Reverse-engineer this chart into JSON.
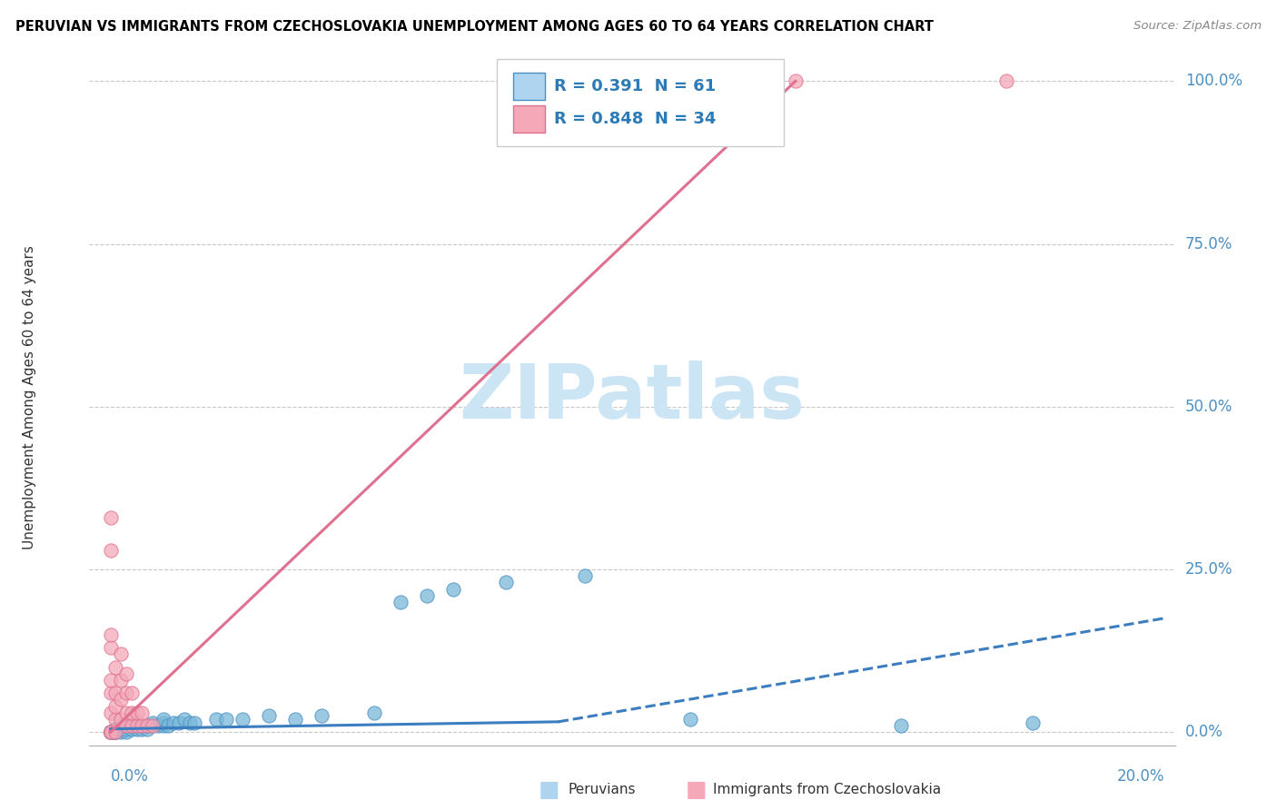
{
  "title": "PERUVIAN VS IMMIGRANTS FROM CZECHOSLOVAKIA UNEMPLOYMENT AMONG AGES 60 TO 64 YEARS CORRELATION CHART",
  "source": "Source: ZipAtlas.com",
  "ylabel": "Unemployment Among Ages 60 to 64 years",
  "ytick_labels": [
    "0.0%",
    "25.0%",
    "50.0%",
    "75.0%",
    "100.0%"
  ],
  "ytick_values": [
    0.0,
    0.25,
    0.5,
    0.75,
    1.0
  ],
  "legend_label1": "Peruvians",
  "legend_label2": "Immigrants from Czechoslovakia",
  "R1": 0.391,
  "N1": 61,
  "R2": 0.848,
  "N2": 34,
  "color_blue": "#7ab8d9",
  "color_blue_edge": "#4a90c4",
  "color_blue_line": "#3b7dbf",
  "color_pink": "#f4a8b8",
  "color_pink_edge": "#e07090",
  "color_pink_line": "#e07090",
  "bg_color": "#ffffff",
  "watermark_color": "#cce5f5",
  "xmin": 0.0,
  "xmax": 0.2,
  "ymin": 0.0,
  "ymax": 1.05,
  "peruvian_x": [
    0.0,
    0.0,
    0.0,
    0.0,
    0.0,
    0.0,
    0.0,
    0.0,
    0.0,
    0.0,
    0.0,
    0.0,
    0.001,
    0.001,
    0.001,
    0.001,
    0.001,
    0.001,
    0.002,
    0.002,
    0.002,
    0.002,
    0.003,
    0.003,
    0.003,
    0.004,
    0.004,
    0.005,
    0.005,
    0.005,
    0.006,
    0.006,
    0.007,
    0.007,
    0.008,
    0.008,
    0.009,
    0.01,
    0.01,
    0.01,
    0.011,
    0.012,
    0.013,
    0.014,
    0.015,
    0.016,
    0.02,
    0.022,
    0.025,
    0.03,
    0.035,
    0.04,
    0.05,
    0.055,
    0.06,
    0.065,
    0.075,
    0.09,
    0.11,
    0.15,
    0.175
  ],
  "peruvian_y": [
    0.0,
    0.0,
    0.0,
    0.0,
    0.0,
    0.0,
    0.0,
    0.0,
    0.0,
    0.0,
    0.0,
    0.0,
    0.0,
    0.0,
    0.0,
    0.005,
    0.005,
    0.005,
    0.0,
    0.005,
    0.005,
    0.01,
    0.0,
    0.005,
    0.01,
    0.005,
    0.01,
    0.005,
    0.01,
    0.015,
    0.005,
    0.01,
    0.005,
    0.01,
    0.01,
    0.015,
    0.01,
    0.01,
    0.015,
    0.02,
    0.01,
    0.015,
    0.015,
    0.02,
    0.015,
    0.015,
    0.02,
    0.02,
    0.02,
    0.025,
    0.02,
    0.025,
    0.03,
    0.2,
    0.21,
    0.22,
    0.23,
    0.24,
    0.02,
    0.01,
    0.015
  ],
  "czech_x": [
    0.0,
    0.0,
    0.0,
    0.0,
    0.0,
    0.0,
    0.0,
    0.0,
    0.0,
    0.0,
    0.001,
    0.001,
    0.001,
    0.001,
    0.001,
    0.002,
    0.002,
    0.002,
    0.002,
    0.003,
    0.003,
    0.003,
    0.003,
    0.004,
    0.004,
    0.004,
    0.005,
    0.005,
    0.006,
    0.006,
    0.007,
    0.008,
    0.13,
    0.17
  ],
  "czech_y": [
    0.0,
    0.0,
    0.0,
    0.03,
    0.06,
    0.08,
    0.13,
    0.15,
    0.28,
    0.33,
    0.0,
    0.02,
    0.04,
    0.06,
    0.1,
    0.02,
    0.05,
    0.08,
    0.12,
    0.01,
    0.03,
    0.06,
    0.09,
    0.01,
    0.03,
    0.06,
    0.01,
    0.03,
    0.01,
    0.03,
    0.01,
    0.01,
    1.0,
    1.0
  ],
  "blue_line_x": [
    0.0,
    0.085,
    0.2
  ],
  "blue_line_y": [
    0.005,
    0.016,
    0.175
  ],
  "blue_line_solid_end": 0.085,
  "pink_line_x": [
    0.0,
    0.13
  ],
  "pink_line_y": [
    0.0,
    1.0
  ]
}
